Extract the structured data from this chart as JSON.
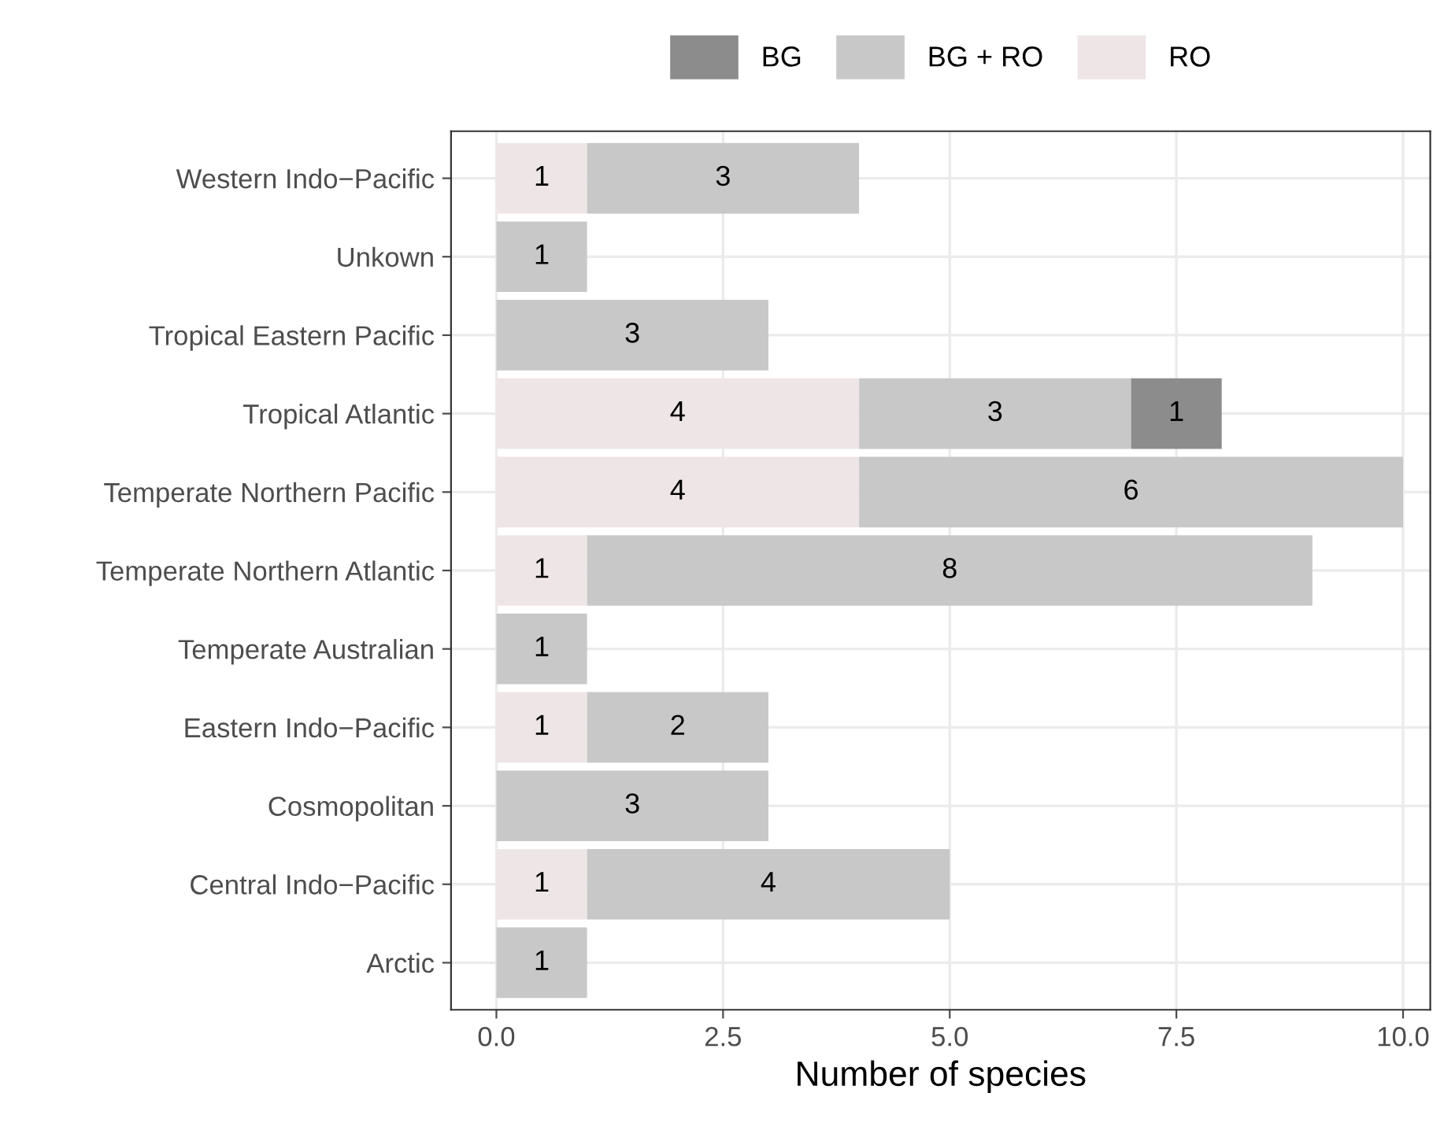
{
  "chart_data": {
    "type": "bar",
    "orientation": "horizontal",
    "stacked": true,
    "xlabel": "Number of species",
    "categories": [
      "Western Indo−Pacific",
      "Unkown",
      "Tropical Eastern Pacific",
      "Tropical Atlantic",
      "Temperate Northern Pacific",
      "Temperate Northern Atlantic",
      "Temperate Australian",
      "Eastern Indo−Pacific",
      "Cosmopolitan",
      "Central Indo−Pacific",
      "Arctic"
    ],
    "series": [
      {
        "name": "RO",
        "color": "#eee6e6",
        "values": [
          1,
          null,
          null,
          4,
          4,
          1,
          null,
          1,
          null,
          1,
          null
        ]
      },
      {
        "name": "BG + RO",
        "color": "#c8c8c8",
        "values": [
          3,
          1,
          3,
          3,
          6,
          8,
          1,
          2,
          3,
          4,
          1
        ]
      },
      {
        "name": "BG",
        "color": "#8c8c8c",
        "values": [
          null,
          null,
          null,
          1,
          null,
          null,
          null,
          null,
          null,
          null,
          null
        ]
      }
    ],
    "xlim": [
      -0.5,
      10.3
    ],
    "xticks": [
      {
        "value": 0,
        "label": "0.0"
      },
      {
        "value": 2.5,
        "label": "2.5"
      },
      {
        "value": 5,
        "label": "5.0"
      },
      {
        "value": 7.5,
        "label": "7.5"
      },
      {
        "value": 10,
        "label": "10.0"
      }
    ],
    "data_labels": true,
    "grid": true,
    "legend": "top"
  }
}
